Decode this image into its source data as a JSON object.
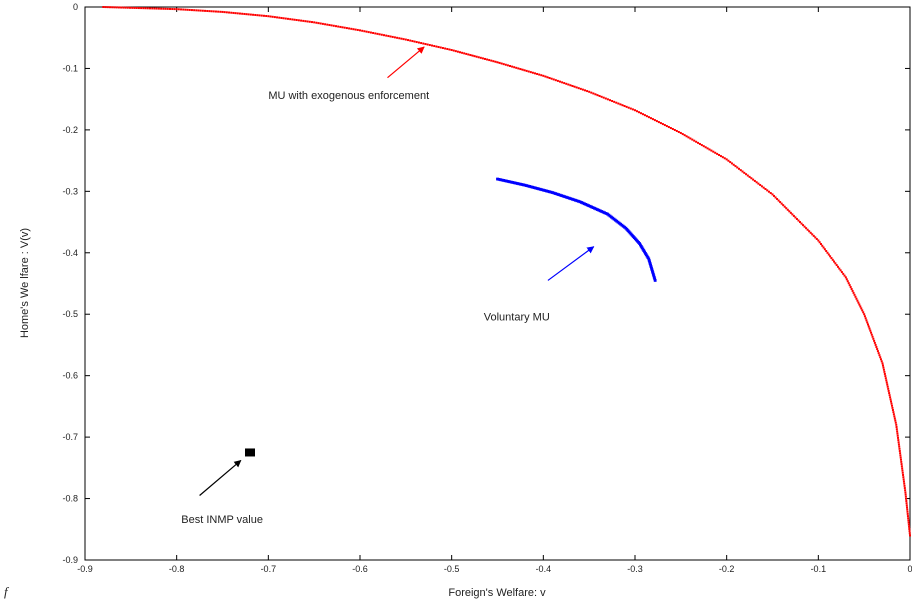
{
  "chart_data": {
    "type": "scatter",
    "xlabel": "Foreign's Welfare: v",
    "ylabel": "Home's We lfare : V(v)",
    "xlim": [
      -0.9,
      0
    ],
    "ylim": [
      -0.9,
      0
    ],
    "x_ticks": [
      "-0.9",
      "-0.8",
      "-0.7",
      "-0.6",
      "-0.5",
      "-0.4",
      "-0.3",
      "-0.2",
      "-0.1",
      "0"
    ],
    "y_ticks": [
      "0",
      "-0.1",
      "-0.2",
      "-0.3",
      "-0.4",
      "-0.5",
      "-0.6",
      "-0.7",
      "-0.8",
      "-0.9"
    ],
    "grid": false,
    "series": [
      {
        "name": "MU with exogenous enforcement",
        "color": "#ff0000",
        "points": [
          [
            -0.88,
            0.0
          ],
          [
            -0.8,
            -0.0035
          ],
          [
            -0.75,
            -0.008
          ],
          [
            -0.7,
            -0.015
          ],
          [
            -0.65,
            -0.025
          ],
          [
            -0.6,
            -0.038
          ],
          [
            -0.55,
            -0.053
          ],
          [
            -0.5,
            -0.07
          ],
          [
            -0.45,
            -0.09
          ],
          [
            -0.4,
            -0.112
          ],
          [
            -0.35,
            -0.138
          ],
          [
            -0.3,
            -0.168
          ],
          [
            -0.25,
            -0.205
          ],
          [
            -0.2,
            -0.248
          ],
          [
            -0.15,
            -0.305
          ],
          [
            -0.1,
            -0.38
          ],
          [
            -0.07,
            -0.44
          ],
          [
            -0.05,
            -0.5
          ],
          [
            -0.03,
            -0.58
          ],
          [
            -0.015,
            -0.68
          ],
          [
            -0.005,
            -0.79
          ],
          [
            0.0,
            -0.86
          ]
        ]
      },
      {
        "name": "Voluntary MU",
        "color": "#0000ff",
        "points": [
          [
            -0.45,
            -0.28
          ],
          [
            -0.42,
            -0.29
          ],
          [
            -0.39,
            -0.302
          ],
          [
            -0.36,
            -0.317
          ],
          [
            -0.33,
            -0.337
          ],
          [
            -0.31,
            -0.36
          ],
          [
            -0.295,
            -0.385
          ],
          [
            -0.285,
            -0.41
          ],
          [
            -0.278,
            -0.445
          ]
        ]
      },
      {
        "name": "Best INMP value",
        "color": "#000000",
        "points": [
          [
            -0.72,
            -0.725
          ]
        ]
      }
    ],
    "annotations": [
      {
        "text": "MU with exogenous enforcement",
        "x": -0.7,
        "y": -0.15,
        "arrow_from": [
          -0.57,
          -0.115
        ],
        "arrow_to": [
          -0.53,
          -0.065
        ],
        "color": "#ff0000"
      },
      {
        "text": "Voluntary MU",
        "x": -0.465,
        "y": -0.51,
        "arrow_from": [
          -0.395,
          -0.445
        ],
        "arrow_to": [
          -0.345,
          -0.39
        ],
        "color": "#0000ff"
      },
      {
        "text": "Best  INMP value",
        "x": -0.795,
        "y": -0.84,
        "arrow_from": [
          -0.775,
          -0.795
        ],
        "arrow_to": [
          -0.73,
          -0.738
        ],
        "color": "#000000"
      }
    ]
  },
  "stray_text": "f"
}
